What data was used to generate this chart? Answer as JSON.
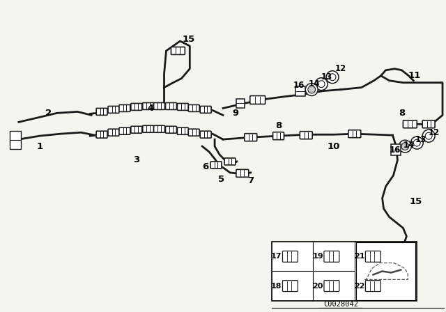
{
  "bg_color": "#f5f5f0",
  "line_color": "#1a1a1a",
  "part_number": "C0028042",
  "fig_width": 6.4,
  "fig_height": 4.48,
  "dpi": 100,
  "pipe_lw": 2.0,
  "connector_lw": 1.2,
  "label_fontsize": 9.5,
  "label_fontsize_small": 8.5
}
